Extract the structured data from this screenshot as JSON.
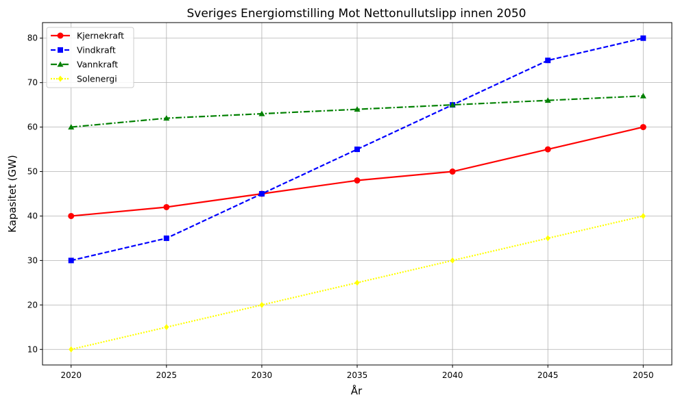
{
  "chart_data": {
    "type": "line",
    "title": "Sveriges Energiomstilling Mot Nettonullutslipp innen 2050",
    "xlabel": "År",
    "ylabel": "Kapasitet (GW)",
    "x": [
      2020,
      2025,
      2030,
      2035,
      2040,
      2045,
      2050
    ],
    "xlim": [
      2018.5,
      2051.5
    ],
    "ylim": [
      6.5,
      83.5
    ],
    "xticks": [
      2020,
      2025,
      2030,
      2035,
      2040,
      2045,
      2050
    ],
    "yticks": [
      10,
      20,
      30,
      40,
      50,
      60,
      70,
      80
    ],
    "grid": true,
    "legend_position": "top-left",
    "series": [
      {
        "name": "Kjernekraft",
        "values": [
          40,
          42,
          45,
          48,
          50,
          55,
          60
        ],
        "color": "#ff0000",
        "dash": "solid",
        "marker": "circle"
      },
      {
        "name": "Vindkraft",
        "values": [
          30,
          35,
          45,
          55,
          65,
          75,
          80
        ],
        "color": "#0000ff",
        "dash": "dashed",
        "marker": "square"
      },
      {
        "name": "Vannkraft",
        "values": [
          60,
          62,
          63,
          64,
          65,
          66,
          67
        ],
        "color": "#008000",
        "dash": "dashdot",
        "marker": "triangle"
      },
      {
        "name": "Solenergi",
        "values": [
          10,
          15,
          20,
          25,
          30,
          35,
          40
        ],
        "color": "#ffff00",
        "dash": "dotted",
        "marker": "diamond"
      }
    ]
  }
}
